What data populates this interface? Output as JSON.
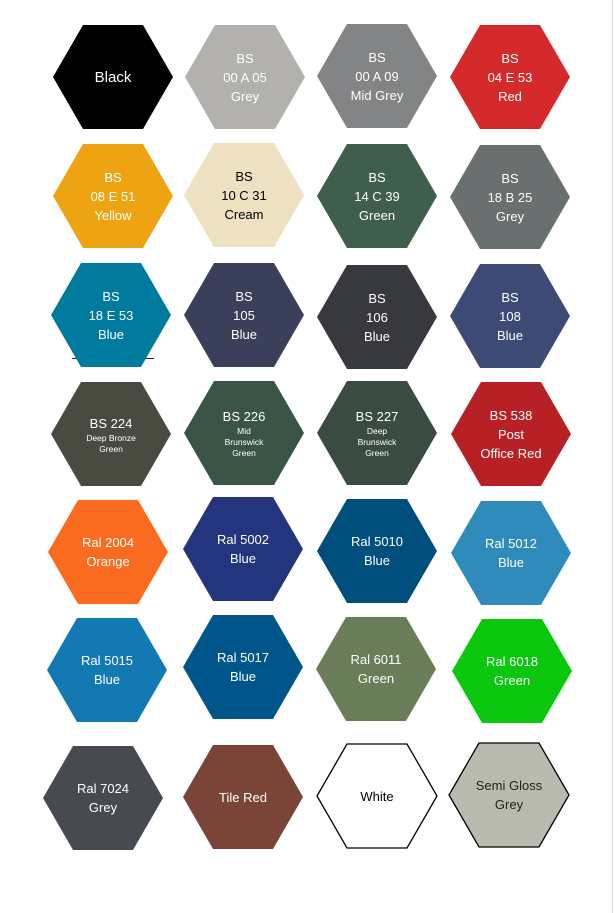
{
  "swatches": [
    {
      "lines": [
        "Black"
      ],
      "small": [],
      "color": "#000000",
      "text": "#ffffff"
    },
    {
      "lines": [
        "BS",
        "00  A 05",
        "Grey"
      ],
      "small": [],
      "color": "#b3b1ae",
      "text": "#ffffff"
    },
    {
      "lines": [
        "BS",
        "00  A 09",
        "Mid Grey"
      ],
      "small": [],
      "color": "#838485",
      "text": "#ffffff"
    },
    {
      "lines": [
        "BS",
        "04  E 53",
        "Red"
      ],
      "small": [],
      "color": "#d52a2b",
      "text": "#ffffff"
    },
    {
      "lines": [
        "BS",
        "08  E 51",
        "Yellow"
      ],
      "small": [],
      "color": "#eea412",
      "text": "#ffffff"
    },
    {
      "lines": [
        "BS",
        "10  C 31",
        "Cream"
      ],
      "small": [],
      "color": "#ede1c1",
      "text": "#000000"
    },
    {
      "lines": [
        "BS",
        "14  C 39",
        "Green"
      ],
      "small": [],
      "color": "#3f5e4b",
      "text": "#ffffff"
    },
    {
      "lines": [
        "BS",
        "18  B 25",
        "Grey"
      ],
      "small": [],
      "color": "#6a6f70",
      "text": "#ffffff"
    },
    {
      "lines": [
        "BS",
        "18  E 53",
        "Blue"
      ],
      "small": [],
      "color": "#007b9e",
      "text": "#ffffff"
    },
    {
      "lines": [
        "BS",
        "105",
        "Blue"
      ],
      "small": [],
      "color": "#3a405a",
      "text": "#ffffff"
    },
    {
      "lines": [
        "BS",
        "106",
        "Blue"
      ],
      "small": [],
      "color": "#38383f",
      "text": "#ffffff"
    },
    {
      "lines": [
        "BS",
        "108",
        "Blue"
      ],
      "small": [],
      "color": "#3d4a76",
      "text": "#ffffff"
    },
    {
      "lines": [
        "BS 224"
      ],
      "small": [
        "Deep Bronze",
        "Green"
      ],
      "color": "#4a4b40",
      "text": "#ffffff"
    },
    {
      "lines": [
        "BS 226"
      ],
      "small": [
        "Mid",
        "Brunswick",
        "Green"
      ],
      "color": "#3a5445",
      "text": "#ffffff"
    },
    {
      "lines": [
        "BS 227"
      ],
      "small": [
        "Deep",
        "Brunswick",
        "Green"
      ],
      "color": "#3a4c42",
      "text": "#ffffff"
    },
    {
      "lines": [
        "BS 538",
        "Post",
        "Office Red"
      ],
      "small": [],
      "color": "#b72025",
      "text": "#ffffff"
    },
    {
      "lines": [
        "Ral 2004",
        "Orange"
      ],
      "small": [],
      "color": "#fa6b1f",
      "text": "#ffffff"
    },
    {
      "lines": [
        "Ral 5002",
        "Blue"
      ],
      "small": [],
      "color": "#23357d",
      "text": "#ffffff"
    },
    {
      "lines": [
        "Ral 5010",
        "Blue"
      ],
      "small": [],
      "color": "#004e7b",
      "text": "#ffffff"
    },
    {
      "lines": [
        "Ral 5012",
        "Blue"
      ],
      "small": [],
      "color": "#2f8bba",
      "text": "#ffffff"
    },
    {
      "lines": [
        "Ral 5015",
        "Blue"
      ],
      "small": [],
      "color": "#1379b2",
      "text": "#ffffff"
    },
    {
      "lines": [
        "Ral 5017",
        "Blue"
      ],
      "small": [],
      "color": "#00568b",
      "text": "#ffffff"
    },
    {
      "lines": [
        "Ral 6011",
        "Green"
      ],
      "small": [],
      "color": "#687d58",
      "text": "#ffffff"
    },
    {
      "lines": [
        "Ral 6018",
        "Green"
      ],
      "small": [],
      "color": "#0bc70d",
      "text": "#ffffff"
    },
    {
      "lines": [
        "Ral 7024",
        "Grey"
      ],
      "small": [],
      "color": "#474a51",
      "text": "#ffffff"
    },
    {
      "lines": [
        "Tile Red"
      ],
      "small": [],
      "color": "#7a4538",
      "text": "#ffffff"
    },
    {
      "lines": [
        "White"
      ],
      "small": [],
      "color": "#ffffff",
      "text": "#000000",
      "outline": "#000000"
    },
    {
      "lines": [
        "Semi Gloss",
        "Grey"
      ],
      "small": [],
      "color": "#b8bbad",
      "text": "#222222",
      "outline": "#000000"
    }
  ]
}
